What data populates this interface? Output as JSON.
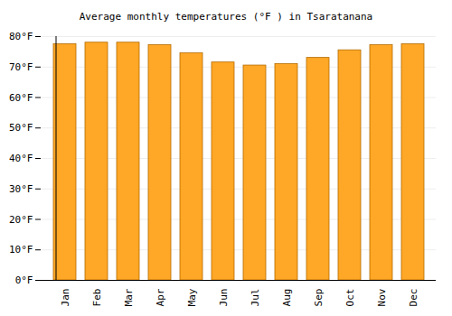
{
  "chart_data": {
    "type": "bar",
    "title": "Average monthly temperatures (°F ) in Tsaratanana",
    "categories": [
      "Jan",
      "Feb",
      "Mar",
      "Apr",
      "May",
      "Jun",
      "Jul",
      "Aug",
      "Sep",
      "Oct",
      "Nov",
      "Dec"
    ],
    "values": [
      77.5,
      78,
      78,
      77.2,
      74.5,
      71.5,
      70.5,
      71,
      73,
      75.5,
      77.2,
      77.5
    ],
    "color": "#ffa726",
    "ylim": [
      0,
      80
    ],
    "yticks": [
      {
        "value": 0,
        "label": "0°F"
      },
      {
        "value": 10,
        "label": "10°F"
      },
      {
        "value": 20,
        "label": "20°F"
      },
      {
        "value": 30,
        "label": "30°F"
      },
      {
        "value": 40,
        "label": "40°F"
      },
      {
        "value": 50,
        "label": "50°F"
      },
      {
        "value": 60,
        "label": "60°F"
      },
      {
        "value": 70,
        "label": "70°F"
      },
      {
        "value": 80,
        "label": "80°F"
      }
    ],
    "grid": true
  }
}
